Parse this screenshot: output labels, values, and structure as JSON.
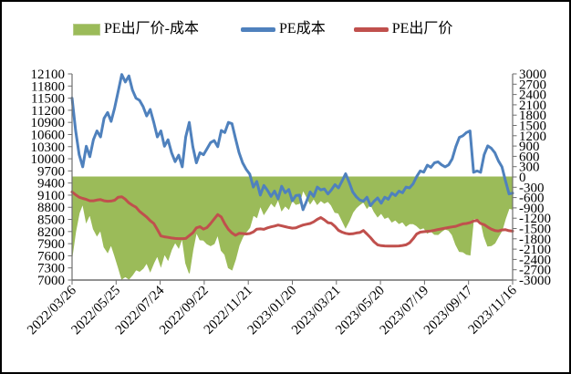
{
  "chart_data": {
    "type": "combo",
    "title": "",
    "grid": false,
    "legend_position": "top",
    "x_tick_labels": [
      "2022/03/26",
      "2022/05/25",
      "2022/07/24",
      "2022/09/22",
      "2022/11/21",
      "2023/01/20",
      "2023/03/21",
      "2023/05/20",
      "2023/07/19",
      "2023/09/17",
      "2023/11/16"
    ],
    "left_axis": {
      "min": 7000,
      "max": 12100,
      "step": 300
    },
    "right_axis": {
      "min": -3000,
      "max": 3000,
      "step": 300
    },
    "series": [
      {
        "name": "PE出厂价-成本",
        "type": "area",
        "axis": "right",
        "color": "#9bbb59",
        "values": [
          -2320,
          -1590,
          -1050,
          -780,
          -1315,
          -1090,
          -1510,
          -1710,
          -1550,
          -2040,
          -2195,
          -1970,
          -2285,
          -2620,
          -2970,
          -2900,
          -2970,
          -2850,
          -2700,
          -2745,
          -2660,
          -2500,
          -2750,
          -2500,
          -2290,
          -2600,
          -2240,
          -2415,
          -2110,
          -1902,
          -2065,
          -1775,
          -2510,
          -2800,
          -2130,
          -1610,
          -1830,
          -1840,
          -1950,
          -2000,
          -1940,
          -1680,
          -2140,
          -2260,
          -2645,
          -2705,
          -2395,
          -1995,
          -1750,
          -1600,
          -1470,
          -1110,
          -1180,
          -835,
          -1085,
          -930,
          -755,
          -865,
          -650,
          -980,
          -840,
          -940,
          -675,
          -800,
          -770,
          -380,
          -570,
          -780,
          -630,
          -800,
          -685,
          -765,
          -710,
          -825,
          -1030,
          -1050,
          -1265,
          -1475,
          -1280,
          -1035,
          -895,
          -805,
          -725,
          -910,
          -790,
          -1005,
          -1160,
          -1050,
          -1205,
          -1160,
          -1310,
          -1250,
          -1355,
          -1305,
          -1430,
          -1360,
          -1360,
          -1420,
          -1515,
          -1475,
          -1635,
          -1575,
          -1670,
          -1675,
          -1585,
          -1515,
          -1550,
          -1685,
          -1970,
          -2170,
          -2180,
          -2250,
          -2270,
          -1205,
          -1220,
          -1265,
          -1730,
          -2010,
          -2000,
          -1925,
          -1735,
          -1560,
          -1205,
          -910,
          -940
        ]
      },
      {
        "name": "PE成本",
        "type": "line",
        "axis": "left",
        "color": "#4f81bd",
        "values": [
          11500,
          10700,
          10100,
          9800,
          10310,
          10050,
          10470,
          10690,
          10540,
          11000,
          11145,
          10925,
          11260,
          11670,
          12085,
          11900,
          12050,
          11700,
          11500,
          11445,
          11290,
          11060,
          11220,
          10900,
          10540,
          10690,
          10310,
          10470,
          10150,
          9930,
          10090,
          9800,
          10540,
          10900,
          10300,
          9900,
          10150,
          10100,
          10250,
          10400,
          10450,
          10300,
          10700,
          10650,
          10900,
          10870,
          10500,
          10150,
          9900,
          9740,
          9620,
          9300,
          9440,
          9100,
          9340,
          9220,
          9070,
          9200,
          9010,
          9320,
          9160,
          9240,
          8960,
          9090,
          9100,
          8740,
          8950,
          9180,
          9070,
          9300,
          9230,
          9255,
          9130,
          9230,
          9360,
          9280,
          9450,
          9630,
          9420,
          9180,
          9060,
          8980,
          8950,
          9050,
          8840,
          8950,
          9030,
          8900,
          9050,
          9000,
          9150,
          9090,
          9200,
          9160,
          9300,
          9280,
          9380,
          9560,
          9700,
          9670,
          9840,
          9790,
          9900,
          9925,
          9850,
          9800,
          9850,
          10000,
          10300,
          10530,
          10570,
          10650,
          10690,
          9665,
          9700,
          9665,
          10100,
          10320,
          10260,
          10150,
          9950,
          9800,
          9450,
          9130,
          9150
        ]
      },
      {
        "name": "PE出厂价",
        "type": "line",
        "axis": "left",
        "color": "#c0504d",
        "values": [
          9180,
          9110,
          9050,
          9020,
          8995,
          8960,
          8960,
          8980,
          8990,
          8960,
          8950,
          8955,
          8975,
          9050,
          9060,
          9000,
          8910,
          8850,
          8800,
          8700,
          8630,
          8560,
          8470,
          8400,
          8250,
          8090,
          8070,
          8055,
          8040,
          8028,
          8025,
          8025,
          8030,
          8100,
          8170,
          8290,
          8320,
          8260,
          8300,
          8400,
          8510,
          8620,
          8560,
          8390,
          8255,
          8165,
          8105,
          8155,
          8150,
          8140,
          8150,
          8190,
          8260,
          8265,
          8255,
          8290,
          8315,
          8335,
          8360,
          8340,
          8320,
          8300,
          8285,
          8290,
          8330,
          8360,
          8380,
          8400,
          8440,
          8500,
          8545,
          8490,
          8420,
          8405,
          8330,
          8230,
          8185,
          8155,
          8140,
          8145,
          8165,
          8175,
          8225,
          8140,
          8050,
          7945,
          7870,
          7850,
          7845,
          7840,
          7840,
          7840,
          7845,
          7855,
          7870,
          7920,
          8020,
          8140,
          8185,
          8195,
          8205,
          8215,
          8230,
          8250,
          8265,
          8285,
          8300,
          8315,
          8330,
          8360,
          8390,
          8400,
          8420,
          8460,
          8480,
          8400,
          8370,
          8310,
          8260,
          8225,
          8215,
          8240,
          8245,
          8220,
          8210
        ]
      }
    ]
  }
}
